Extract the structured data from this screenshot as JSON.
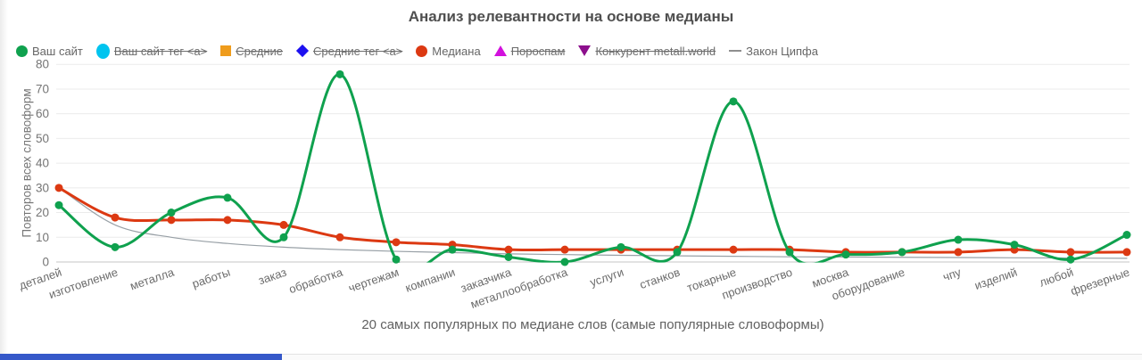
{
  "title": "Анализ релевантности на основе медианы",
  "legend": {
    "items": [
      {
        "label": "Ваш сайт",
        "color": "#0fa14e",
        "shape": "circle",
        "disabled": false
      },
      {
        "label": "Ваш сайт тег <a>",
        "color": "#00c4ef",
        "shape": "circle-big",
        "disabled": true
      },
      {
        "label": "Средние",
        "color": "#ef9c1c",
        "shape": "square",
        "disabled": true
      },
      {
        "label": "Средние тег <a>",
        "color": "#1c10f0",
        "shape": "diamond",
        "disabled": true
      },
      {
        "label": "Медиана",
        "color": "#dc3912",
        "shape": "circle",
        "disabled": false
      },
      {
        "label": "Пороспам",
        "color": "#d211dd",
        "shape": "triangle-up",
        "disabled": true
      },
      {
        "label": "Конкурент metall.world",
        "color": "#8c0f8c",
        "shape": "triangle-down",
        "disabled": true
      },
      {
        "label": "Закон Ципфа",
        "color": "#8f8f8f",
        "shape": "line",
        "disabled": false
      }
    ]
  },
  "chart_data": {
    "type": "line",
    "title": "Анализ релевантности на основе медианы",
    "xlabel": "20 самых популярных по медиане слов (самые популярные словоформы)",
    "ylabel": "Повторов всех словоформ",
    "ylim": [
      0,
      80
    ],
    "yticks": [
      0,
      10,
      20,
      30,
      40,
      50,
      60,
      70,
      80
    ],
    "grid": true,
    "legend_position": "top",
    "categories": [
      "деталей",
      "изготовление",
      "металла",
      "работы",
      "заказ",
      "обработка",
      "чертежам",
      "компании",
      "заказчика",
      "металлообработка",
      "услуги",
      "станков",
      "токарные",
      "производство",
      "москва",
      "оборудование",
      "чпу",
      "изделий",
      "любой",
      "фрезерные"
    ],
    "series": [
      {
        "name": "Ваш сайт",
        "color": "#0fa14e",
        "marker": "circle",
        "values": [
          23,
          6,
          20,
          26,
          10,
          76,
          1,
          5,
          2,
          0,
          6,
          4,
          65,
          4,
          3,
          4,
          9,
          7,
          1,
          11
        ]
      },
      {
        "name": "Медиана",
        "color": "#dc3912",
        "marker": "circle",
        "values": [
          30,
          18,
          17,
          17,
          15,
          10,
          8,
          7,
          5,
          5,
          5,
          5,
          5,
          5,
          4,
          4,
          4,
          5,
          4,
          4
        ]
      },
      {
        "name": "Закон Ципфа",
        "color": "#98a0a6",
        "marker": "none",
        "values": [
          30,
          15,
          10,
          7.5,
          6,
          5,
          4.3,
          3.8,
          3.3,
          3,
          2.7,
          2.5,
          2.3,
          2.1,
          2,
          1.9,
          1.8,
          1.7,
          1.6,
          1.5
        ]
      }
    ],
    "hidden_series": [
      "Ваш сайт тег <a>",
      "Средние",
      "Средние тег <a>",
      "Пороспам",
      "Конкурент metall.world"
    ]
  },
  "scrollbar": {
    "thumb_color": "#3558c9"
  }
}
